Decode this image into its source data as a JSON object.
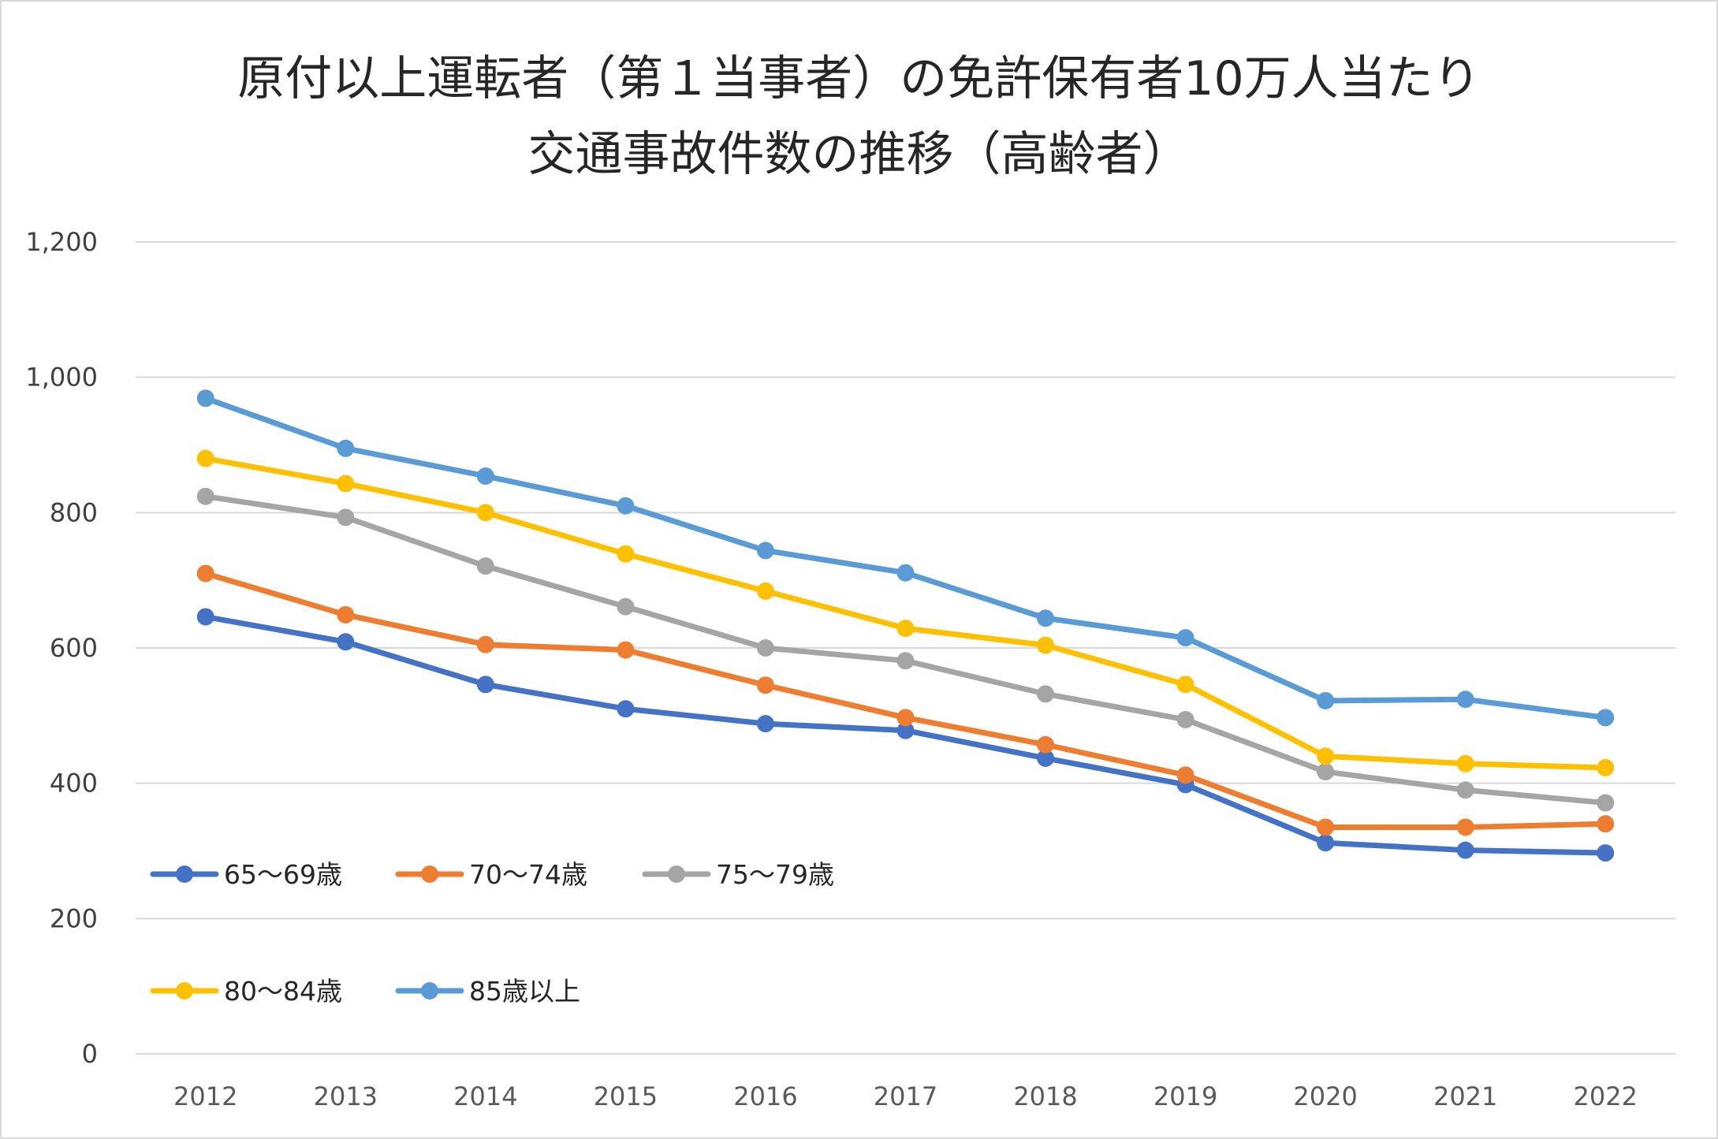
{
  "chart_data": {
    "type": "line",
    "title_lines": [
      "原付以上運転者（第１当事者）の免許保有者10万人当たり",
      "交通事故件数の推移（高齢者）"
    ],
    "xlabel": "",
    "ylabel": "",
    "categories": [
      "2012",
      "2013",
      "2014",
      "2015",
      "2016",
      "2017",
      "2018",
      "2019",
      "2020",
      "2021",
      "2022"
    ],
    "ylim": [
      0,
      1200
    ],
    "yticks": [
      0,
      200,
      400,
      600,
      800,
      1000,
      1200
    ],
    "ytick_labels": [
      "0",
      "200",
      "400",
      "600",
      "800",
      "1,000",
      "1,200"
    ],
    "grid": true,
    "legend_position": "inside-lower-left",
    "series": [
      {
        "name": "65～69歳",
        "color": "#4472C4",
        "values": [
          646,
          609,
          546,
          510,
          488,
          478,
          437,
          398,
          312,
          301,
          297
        ]
      },
      {
        "name": "70～74歳",
        "color": "#ED7D31",
        "values": [
          710,
          649,
          605,
          597,
          545,
          497,
          457,
          412,
          335,
          335,
          340
        ]
      },
      {
        "name": "75～79歳",
        "color": "#A5A5A5",
        "values": [
          824,
          793,
          721,
          661,
          600,
          581,
          532,
          494,
          417,
          390,
          371
        ]
      },
      {
        "name": "80～84歳",
        "color": "#FFC000",
        "values": [
          880,
          843,
          800,
          739,
          684,
          629,
          604,
          546,
          440,
          429,
          423
        ]
      },
      {
        "name": "85歳以上",
        "color": "#5B9BD5",
        "values": [
          969,
          895,
          854,
          810,
          744,
          711,
          644,
          615,
          522,
          524,
          497
        ]
      }
    ]
  }
}
